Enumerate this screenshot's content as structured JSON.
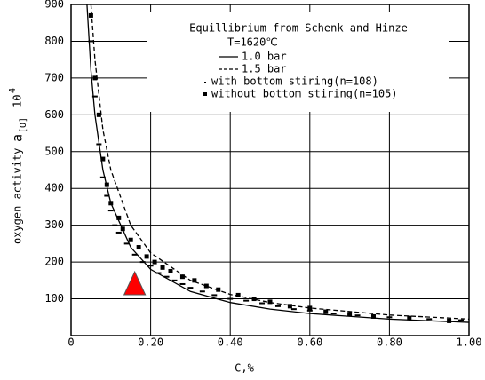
{
  "chart_data": {
    "type": "scatter",
    "legend_title": "Equillibrium from Schenk and Hinze",
    "legend_subtitle": "T=1620℃",
    "x_label": "C,%",
    "y_label": "oxygen activity",
    "y_label_symbol": "a",
    "y_label_subscript": "[O]",
    "y_label_factor": "10",
    "y_label_exponent": "4",
    "xlim": [
      0,
      1.0
    ],
    "ylim": [
      0,
      900
    ],
    "xticks": [
      0,
      {
        "value": 0.2,
        "label": "0.20"
      },
      {
        "value": 0.4,
        "label": "0.40"
      },
      {
        "value": 0.6,
        "label": "0.60"
      },
      {
        "value": 0.8,
        "label": "0.80"
      },
      {
        "value": 1.0,
        "label": "1.00"
      }
    ],
    "yticks": [
      100,
      200,
      300,
      400,
      500,
      600,
      700,
      800,
      900
    ],
    "grid": true,
    "legend": "top-right",
    "series": [
      {
        "name": "1.0 bar",
        "kind": "line",
        "dash": false,
        "color": "#000000",
        "x": [
          0.04,
          0.05,
          0.06,
          0.08,
          0.1,
          0.15,
          0.2,
          0.3,
          0.4,
          0.5,
          0.6,
          0.8,
          1.0
        ],
        "values": [
          900,
          720,
          600,
          450,
          360,
          240,
          180,
          120,
          90,
          72,
          60,
          45,
          36
        ]
      },
      {
        "name": "1.5 bar",
        "kind": "line",
        "dash": true,
        "color": "#000000",
        "x": [
          0.05,
          0.06,
          0.08,
          0.1,
          0.15,
          0.2,
          0.3,
          0.4,
          0.5,
          0.6,
          0.8,
          1.0
        ],
        "values": [
          900,
          750,
          560,
          450,
          300,
          225,
          150,
          112,
          90,
          75,
          56,
          45
        ]
      },
      {
        "name": "with bottom stiring(n=108)",
        "kind": "dot",
        "color": "#000000",
        "x": [
          0.05,
          0.06,
          0.07,
          0.08,
          0.09,
          0.1,
          0.11,
          0.12,
          0.14,
          0.16,
          0.18,
          0.2,
          0.22,
          0.24,
          0.26,
          0.28,
          0.3,
          0.33,
          0.36,
          0.4,
          0.44,
          0.48,
          0.52,
          0.56,
          0.6,
          0.66,
          0.72,
          0.8,
          0.9,
          0.98
        ],
        "values": [
          800,
          650,
          520,
          430,
          380,
          340,
          300,
          280,
          250,
          220,
          200,
          190,
          170,
          160,
          150,
          140,
          130,
          120,
          110,
          100,
          95,
          88,
          80,
          72,
          68,
          60,
          55,
          50,
          45,
          42
        ]
      },
      {
        "name": "without bottom stiring(n=105)",
        "kind": "square",
        "color": "#000000",
        "x": [
          0.05,
          0.06,
          0.07,
          0.08,
          0.09,
          0.1,
          0.12,
          0.13,
          0.15,
          0.17,
          0.19,
          0.21,
          0.23,
          0.25,
          0.28,
          0.31,
          0.34,
          0.37,
          0.42,
          0.46,
          0.5,
          0.55,
          0.6,
          0.64,
          0.7,
          0.76,
          0.85,
          0.95
        ],
        "values": [
          870,
          700,
          600,
          480,
          410,
          360,
          320,
          290,
          260,
          240,
          215,
          200,
          185,
          175,
          160,
          150,
          135,
          125,
          110,
          100,
          92,
          80,
          75,
          65,
          58,
          52,
          48,
          40
        ]
      }
    ],
    "highlight": {
      "x": 0.16,
      "y": 135,
      "color": "#ff0000"
    }
  }
}
